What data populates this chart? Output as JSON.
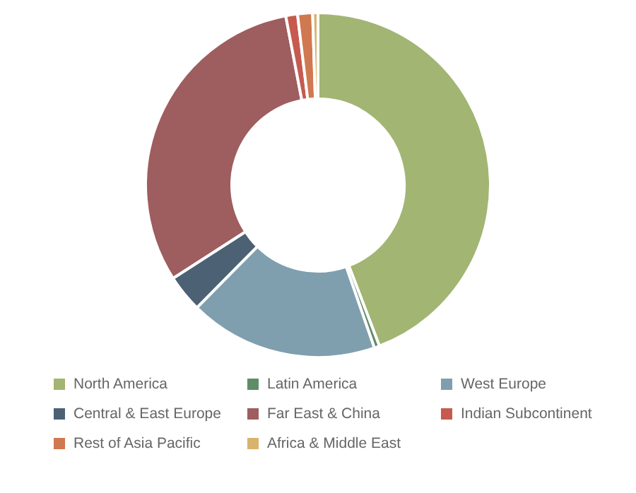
{
  "chart_data": {
    "type": "donut",
    "categories": [
      "North America",
      "Latin America",
      "West Europe",
      "Central & East Europe",
      "Far East & China",
      "Indian Subcontinent",
      "Rest of Asia Pacific",
      "Africa & Middle East"
    ],
    "values": [
      44.2,
      0.5,
      17.7,
      3.5,
      31.1,
      1.1,
      1.4,
      0.5
    ],
    "colors": [
      "#a2b573",
      "#5f8d68",
      "#7f9fae",
      "#4d6175",
      "#9e5d5e",
      "#c65a4f",
      "#d0784f",
      "#d9b36e"
    ],
    "legend": "bottom"
  }
}
